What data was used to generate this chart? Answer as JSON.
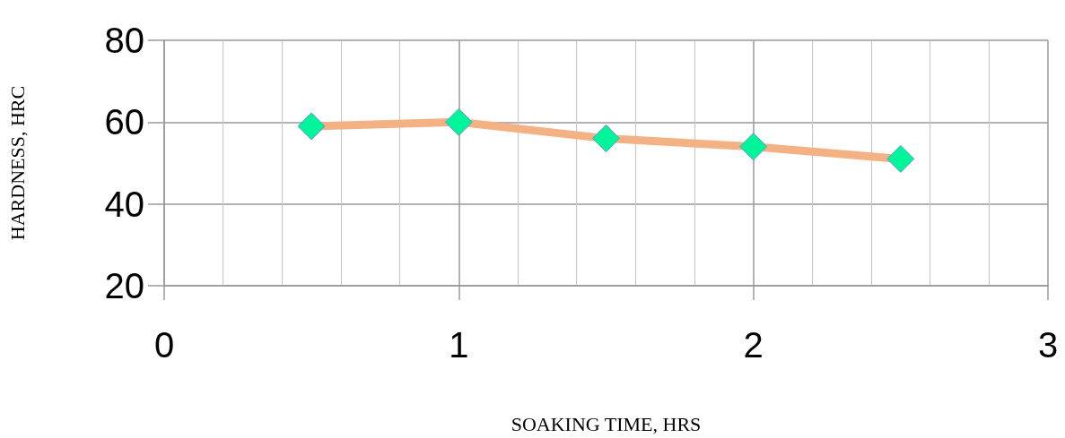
{
  "chart_data": {
    "type": "line",
    "xlabel": "SOAKING TIME, HRS",
    "ylabel": "HARDNESS, HRC",
    "x": [
      0.5,
      1,
      1.5,
      2,
      2.5
    ],
    "series": [
      {
        "color": "#f4b183",
        "colors": [
          "#00f59b",
          "#00f59b",
          "#00f59b",
          "#00f59b",
          "#00f59b"
        ],
        "values": [
          59,
          60,
          56,
          54,
          51
        ]
      }
    ],
    "marker": "diamond",
    "xlim": [
      0,
      3
    ],
    "xticks": [
      0,
      1,
      2,
      3
    ],
    "ylim": [
      20,
      80
    ],
    "yticks": [
      20,
      40,
      60,
      80
    ],
    "grid": true
  }
}
